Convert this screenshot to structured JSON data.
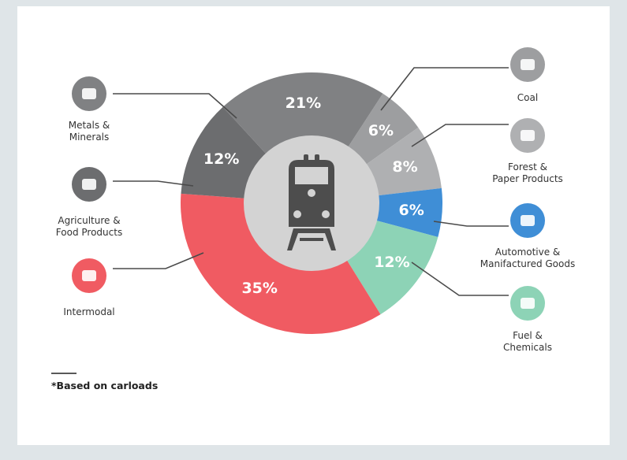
{
  "chart_data": {
    "type": "donut",
    "categories": [
      "Coal",
      "Forest &\nPaper Products",
      "Automotive &\nManifactured Goods",
      "Fuel &\nChemicals",
      "Intermodal",
      "Agriculture &\nFood Products",
      "Metals &\nMinerals"
    ],
    "values": [
      6,
      8,
      6,
      12,
      35,
      12,
      21
    ],
    "value_labels": [
      "6%",
      "8%",
      "6%",
      "12%",
      "35%",
      "12%",
      "21%"
    ],
    "colors": [
      "#9d9ea0",
      "#afb0b2",
      "#3f8ed6",
      "#8dd3b6",
      "#f05b62",
      "#6c6d6f",
      "#808183"
    ],
    "footnote": "*Based on carloads"
  }
}
